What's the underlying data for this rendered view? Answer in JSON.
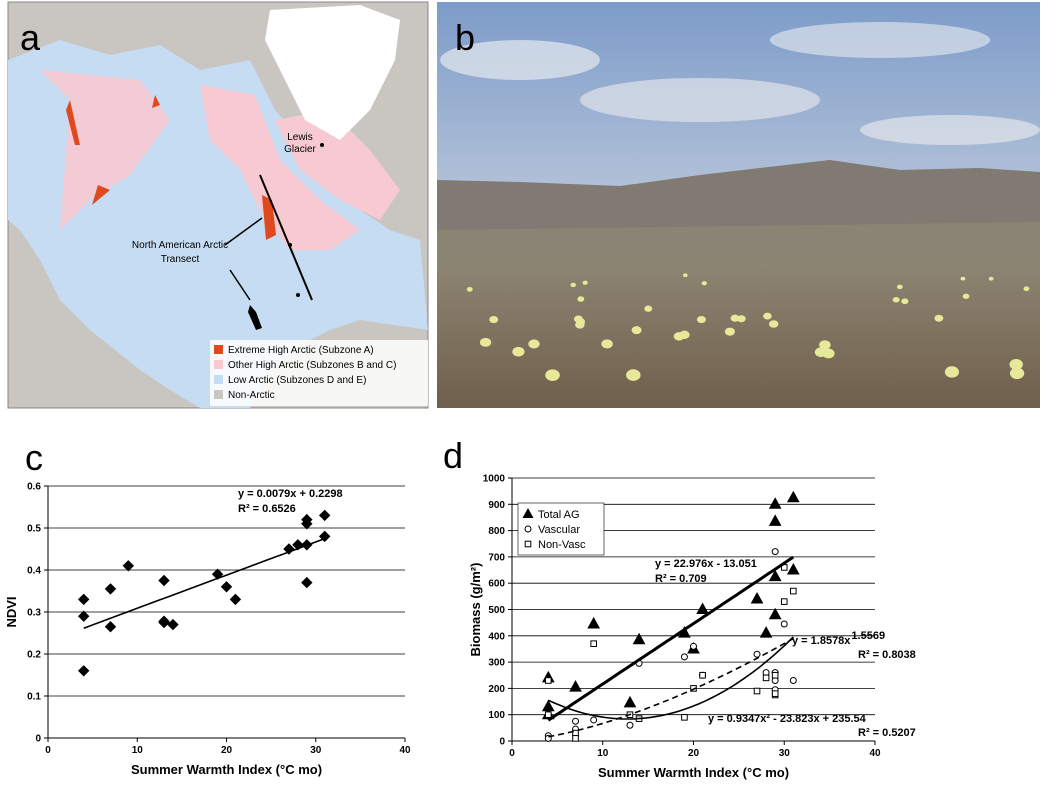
{
  "panels": {
    "a": {
      "label": "a",
      "glacier_lines": [
        "Lewis",
        "Glacier"
      ],
      "transect_lines": [
        "North American Arctic",
        "Transect"
      ],
      "legend": [
        {
          "name": "Extreme High Arctic (Subzone A)",
          "color": "#e0481e"
        },
        {
          "name": "Other High Arctic (Subzones B and C)",
          "color": "#f7c9d2"
        },
        {
          "name": "Low Arctic (Subzones D and E)",
          "color": "#c6dcf2"
        },
        {
          "name": "Non-Arctic",
          "color": "#c9c5c1"
        }
      ]
    },
    "b": {
      "label": "b"
    }
  },
  "chart_data": [
    {
      "type": "scatter",
      "panel_label": "c",
      "x_label": "Summer Warmth Index (°C mo)",
      "y_label": "NDVI",
      "marker": "diamond",
      "color": "#000000",
      "x": [
        4,
        4,
        4,
        7,
        7,
        9,
        13,
        13,
        13,
        14,
        19,
        20,
        21,
        27,
        28,
        29,
        29,
        29,
        29,
        31,
        31
      ],
      "values": [
        0.33,
        0.29,
        0.16,
        0.355,
        0.265,
        0.41,
        0.375,
        0.278,
        0.275,
        0.27,
        0.39,
        0.36,
        0.33,
        0.45,
        0.46,
        0.51,
        0.52,
        0.46,
        0.37,
        0.53,
        0.48
      ],
      "xlim": [
        0,
        40
      ],
      "xticks": [
        0,
        10,
        20,
        30,
        40
      ],
      "ylim": [
        0,
        0.6
      ],
      "yticks": [
        0,
        0.1,
        0.2,
        0.3,
        0.4,
        0.5,
        0.6
      ],
      "grid": true,
      "trendlines": [
        {
          "kind": "linear",
          "coefficients": [
            0.0079,
            0.2298
          ],
          "label": "y = 0.0079x + 0.2298",
          "r2_label": "R² = 0.6526",
          "style": "solid"
        }
      ]
    },
    {
      "type": "scatter",
      "panel_label": "d",
      "x_label": "Summer Warmth Index (°C mo)",
      "y_label": "Biomass (g/m²)",
      "series": [
        {
          "name": "Total AG",
          "marker": "triangle",
          "color": "#000000",
          "x": [
            4,
            4,
            4,
            7,
            9,
            14,
            13,
            19,
            20,
            21,
            27,
            28,
            29,
            29,
            29,
            29,
            31,
            31
          ],
          "values": [
            240,
            130,
            100,
            205,
            445,
            385,
            145,
            410,
            350,
            500,
            540,
            410,
            900,
            835,
            625,
            480,
            925,
            650
          ]
        },
        {
          "name": "Vascular",
          "marker": "circle",
          "color": "#000000",
          "x": [
            4,
            4,
            7,
            7,
            9,
            14,
            13,
            19,
            20,
            21,
            27,
            28,
            29,
            29,
            29,
            30,
            31,
            29
          ],
          "values": [
            20,
            10,
            75,
            45,
            80,
            295,
            60,
            320,
            360,
            250,
            330,
            260,
            720,
            230,
            195,
            445,
            230,
            260
          ]
        },
        {
          "name": "Non-Vasc",
          "marker": "square",
          "color": "#000000",
          "x": [
            4,
            4,
            7,
            7,
            9,
            14,
            13,
            19,
            20,
            21,
            27,
            28,
            29,
            29,
            30,
            30,
            31,
            29
          ],
          "values": [
            230,
            100,
            30,
            10,
            370,
            85,
            100,
            90,
            200,
            250,
            190,
            240,
            250,
            175,
            660,
            530,
            570,
            180
          ]
        }
      ],
      "xlim": [
        0,
        40
      ],
      "xticks": [
        0,
        10,
        20,
        30,
        40
      ],
      "ylim": [
        0,
        1000
      ],
      "yticks": [
        0,
        100,
        200,
        300,
        400,
        500,
        600,
        700,
        800,
        900,
        1000
      ],
      "grid": true,
      "trendlines": [
        {
          "kind": "linear",
          "coefficients": [
            22.976,
            -13.051
          ],
          "label": "y = 22.976x - 13.051",
          "r2_label": "R² = 0.709",
          "style": "bold"
        },
        {
          "kind": "power",
          "coefficients": [
            1.8578,
            1.5569
          ],
          "label": "y = 1.8578x",
          "exponent_label": "1.5569",
          "r2_label": "R² = 0.8038",
          "style": "dashed"
        },
        {
          "kind": "quadratic",
          "coefficients": [
            0.9347,
            -23.823,
            235.54
          ],
          "label": "y = 0.9347x² - 23.823x + 235.54",
          "r2_label": "R² = 0.5207",
          "style": "solid"
        }
      ]
    }
  ]
}
